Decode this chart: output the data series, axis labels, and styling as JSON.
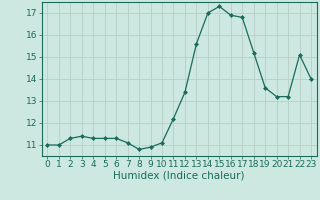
{
  "x": [
    0,
    1,
    2,
    3,
    4,
    5,
    6,
    7,
    8,
    9,
    10,
    11,
    12,
    13,
    14,
    15,
    16,
    17,
    18,
    19,
    20,
    21,
    22,
    23
  ],
  "y": [
    11.0,
    11.0,
    11.3,
    11.4,
    11.3,
    11.3,
    11.3,
    11.1,
    10.8,
    10.9,
    11.1,
    12.2,
    13.4,
    15.6,
    17.0,
    17.3,
    16.9,
    16.8,
    15.2,
    13.6,
    13.2,
    13.2,
    15.1,
    14.0
  ],
  "xlabel": "Humidex (Indice chaleur)",
  "ylim": [
    10.5,
    17.5
  ],
  "xlim": [
    -0.5,
    23.5
  ],
  "yticks": [
    11,
    12,
    13,
    14,
    15,
    16,
    17
  ],
  "xticks": [
    0,
    1,
    2,
    3,
    4,
    5,
    6,
    7,
    8,
    9,
    10,
    11,
    12,
    13,
    14,
    15,
    16,
    17,
    18,
    19,
    20,
    21,
    22,
    23
  ],
  "line_color": "#1a6b5a",
  "marker": "D",
  "marker_size": 2.0,
  "bg_color": "#cce8e0",
  "grid_color": "#b8cec8",
  "tick_color": "#1a6b5a",
  "label_color": "#1a6b5a",
  "font_size": 6.5,
  "xlabel_fontsize": 7.5
}
